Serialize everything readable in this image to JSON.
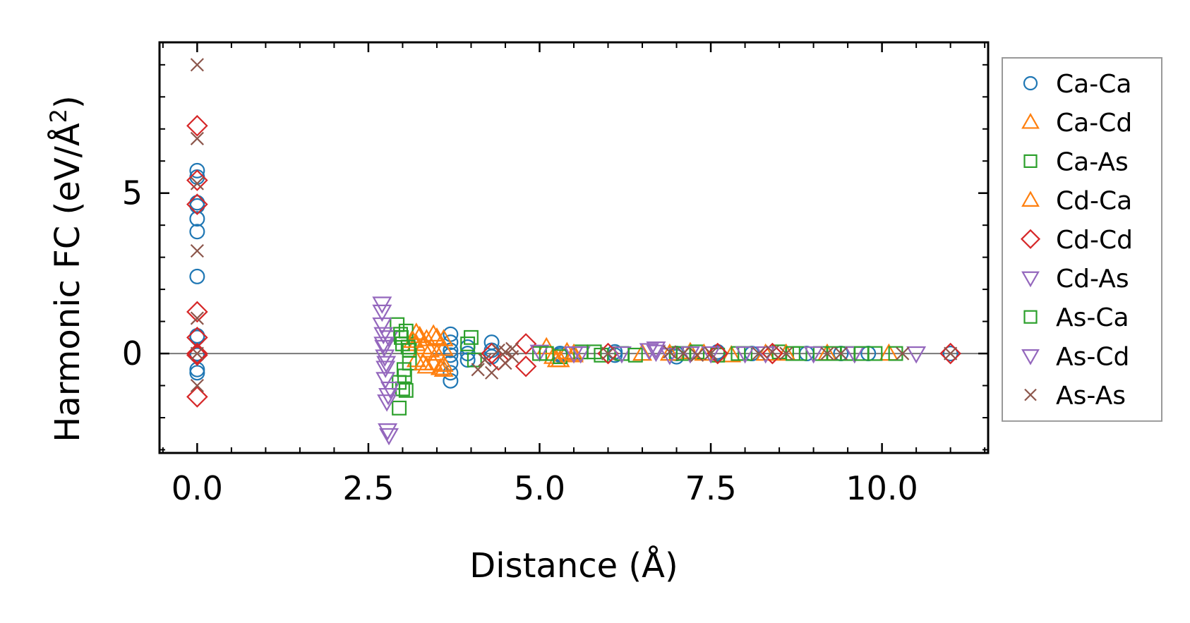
{
  "chart_data": {
    "type": "scatter",
    "xlabel": "Distance (Å)",
    "ylabel": "Harmonic FC (eV/Å²)",
    "xlim": [
      -0.55,
      11.55
    ],
    "ylim": [
      -3.1,
      9.7
    ],
    "xticks": [
      0.0,
      2.5,
      5.0,
      7.5,
      10.0
    ],
    "xtick_labels": [
      "0.0",
      "2.5",
      "5.0",
      "7.5",
      "10.0"
    ],
    "yticks": [
      0,
      5
    ],
    "ytick_labels": [
      "0",
      "5"
    ],
    "zero_line": true,
    "grid": false,
    "legend_position": "outside-right",
    "series": [
      {
        "name": "Ca-Ca",
        "marker": "circle",
        "color": "#1f77b4",
        "x": [
          0,
          0,
          0,
          0,
          0,
          0,
          0,
          0,
          0,
          0,
          0,
          0,
          0,
          3.7,
          3.7,
          3.7,
          3.7,
          3.7,
          3.7,
          3.7,
          3.95,
          3.95,
          3.95,
          4.3,
          4.3,
          4.3,
          5.3,
          5.3,
          6.1,
          6.1,
          7.0,
          7.0,
          7.6,
          7.6,
          8.1,
          8.9,
          9.4,
          9.8,
          11.0
        ],
        "y": [
          5.7,
          5.5,
          4.7,
          4.6,
          4.2,
          3.8,
          2.4,
          0.55,
          0.5,
          0.0,
          -0.05,
          -0.5,
          -0.6,
          0.6,
          0.35,
          0.1,
          -0.05,
          -0.3,
          -0.6,
          -0.85,
          0.2,
          0.0,
          -0.2,
          0.35,
          0.1,
          -0.1,
          0.0,
          -0.05,
          0.05,
          -0.05,
          0.0,
          -0.1,
          0.0,
          0.05,
          0.0,
          0.0,
          0.0,
          0.0,
          0.0
        ]
      },
      {
        "name": "Ca-Cd",
        "marker": "triangle-up",
        "color": "#ff7f0e",
        "x": [
          3.2,
          3.2,
          3.2,
          3.25,
          3.3,
          3.35,
          3.35,
          3.4,
          3.45,
          3.5,
          3.5,
          3.55,
          3.6,
          3.6,
          3.6,
          5.2,
          5.3,
          5.4,
          5.5,
          6.5,
          7.2,
          7.8,
          8.3,
          9.2,
          10.1
        ],
        "y": [
          0.65,
          0.3,
          -0.2,
          0.55,
          0.2,
          -0.4,
          0.45,
          0.1,
          -0.3,
          0.5,
          0.0,
          -0.45,
          0.45,
          0.15,
          -0.35,
          -0.1,
          -0.2,
          0.05,
          -0.05,
          0.0,
          0.05,
          -0.05,
          0.0,
          0.0,
          0.0
        ]
      },
      {
        "name": "Ca-As",
        "marker": "square",
        "color": "#2ca02c",
        "x": [
          2.92,
          2.95,
          2.95,
          2.97,
          3.0,
          3.0,
          3.02,
          3.05,
          3.05,
          3.1,
          3.1,
          3.95,
          4.0,
          4.05,
          5.0,
          5.3,
          5.6,
          5.9,
          6.2,
          7.0,
          7.3,
          7.6,
          8.0,
          8.5,
          8.8,
          9.1,
          9.5,
          9.9,
          10.2
        ],
        "y": [
          0.9,
          -0.9,
          -1.7,
          0.6,
          -1.1,
          0.3,
          -0.5,
          0.7,
          -1.15,
          0.1,
          -0.3,
          0.3,
          0.5,
          -0.2,
          0.0,
          -0.1,
          0.05,
          -0.05,
          0.0,
          0.0,
          0.05,
          -0.05,
          0.0,
          0.05,
          0.0,
          0.0,
          0.0,
          0.0,
          0.0
        ]
      },
      {
        "name": "Cd-Ca",
        "marker": "triangle-up",
        "color": "#ff7f0e",
        "x": [
          3.15,
          3.3,
          3.45,
          3.6,
          5.1,
          5.25,
          5.5,
          6.9,
          7.4,
          8.6
        ],
        "y": [
          0.4,
          -0.3,
          0.6,
          -0.5,
          0.2,
          -0.2,
          0.0,
          0.0,
          0.0,
          0.0
        ]
      },
      {
        "name": "Cd-Cd",
        "marker": "diamond",
        "color": "#d62728",
        "x": [
          0,
          0,
          0,
          0,
          0,
          0,
          0,
          0,
          4.3,
          4.4,
          4.8,
          4.8,
          6.0,
          7.6,
          8.4,
          11.0
        ],
        "y": [
          7.1,
          5.4,
          4.65,
          1.3,
          0.5,
          0.0,
          -0.05,
          -1.35,
          0.0,
          -0.2,
          0.3,
          -0.4,
          0.0,
          0.0,
          0.0,
          0.0
        ]
      },
      {
        "name": "Cd-As",
        "marker": "triangle-down",
        "color": "#9467bd",
        "x": [
          2.7,
          2.7,
          2.7,
          2.72,
          2.72,
          2.74,
          2.75,
          2.75,
          2.77,
          2.78,
          2.8,
          2.8,
          2.82,
          5.0,
          5.6,
          6.2,
          6.7,
          6.7,
          6.9,
          7.5,
          8.3,
          9.6,
          10.5
        ],
        "y": [
          1.55,
          1.3,
          0.9,
          0.6,
          0.3,
          -0.1,
          -0.45,
          -0.8,
          -1.5,
          -2.4,
          -2.55,
          0.5,
          -1.1,
          0.05,
          0.0,
          0.0,
          0.15,
          0.05,
          -0.05,
          0.0,
          0.0,
          0.0,
          0.0
        ]
      },
      {
        "name": "As-Ca",
        "marker": "square",
        "color": "#2ca02c",
        "x": [
          2.98,
          3.03,
          3.08,
          5.1,
          5.8,
          6.4,
          7.1,
          7.9,
          8.7,
          9.3,
          9.7
        ],
        "y": [
          0.5,
          -0.7,
          0.2,
          0.0,
          0.05,
          -0.05,
          0.0,
          0.0,
          0.0,
          0.0,
          0.0
        ]
      },
      {
        "name": "As-Cd",
        "marker": "triangle-down",
        "color": "#9467bd",
        "x": [
          2.73,
          2.76,
          2.79,
          5.5,
          6.6,
          7.2,
          8.0,
          9.0
        ],
        "y": [
          0.2,
          -0.3,
          -1.3,
          0.0,
          0.1,
          0.0,
          0.0,
          0.0
        ]
      },
      {
        "name": "As-As",
        "marker": "x",
        "color": "#8c564b",
        "x": [
          0,
          0,
          0,
          0,
          0,
          0,
          0,
          4.1,
          4.2,
          4.3,
          4.4,
          4.5,
          4.5,
          4.6,
          4.6,
          6.0,
          6.9,
          7.1,
          7.3,
          7.5,
          8.2,
          8.4,
          8.6,
          9.2,
          9.4,
          10.3,
          11.0
        ],
        "y": [
          9.0,
          6.7,
          5.3,
          3.2,
          1.1,
          0.0,
          -1.0,
          -0.5,
          -0.2,
          -0.6,
          0.1,
          -0.3,
          0.05,
          -0.1,
          0.15,
          0.0,
          0.05,
          0.0,
          -0.05,
          0.0,
          0.0,
          0.05,
          0.0,
          0.0,
          0.0,
          0.0,
          0.0
        ]
      }
    ]
  }
}
